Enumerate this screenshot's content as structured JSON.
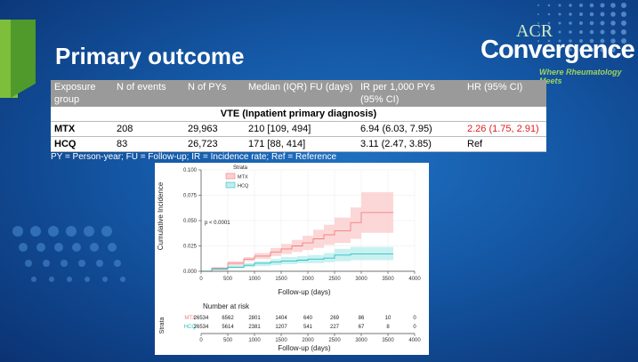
{
  "title": "Primary outcome",
  "logo": {
    "acr": "ACR",
    "name": "Convergence",
    "tagline": "Where Rheumatology Meets"
  },
  "table": {
    "headers": [
      "Exposure group",
      "N of events",
      "N of PYs",
      "Median (IQR) FU (days)",
      "IR per 1,000 PYs (95% CI)",
      "HR (95% CI)"
    ],
    "section": "VTE (Inpatient primary diagnosis)",
    "rows": [
      {
        "group": "MTX",
        "events": "208",
        "pys": "29,963",
        "median": "210 [109, 494]",
        "ir": "6.94 (6.03, 7.95)",
        "hr": "2.26 (1.75, 2.91)"
      },
      {
        "group": "HCQ",
        "events": "83",
        "pys": "26,723",
        "median": "171 [88, 414]",
        "ir": "3.11 (2.47, 3.85)",
        "hr": "Ref"
      }
    ]
  },
  "footnote": "PY = Person-year; FU = Follow-up; IR = Incidence rate; Ref = Reference",
  "colors": {
    "mtx": "#f08080",
    "hcq": "#2bbfbf",
    "hr_highlight": "#e02020"
  },
  "chart_data": {
    "type": "line",
    "ylabel": "Cumulative Incidence",
    "xlabel": "Follow-up (days)",
    "legend_title": "Strata",
    "pvalue": "p < 0.0001",
    "xlim": [
      0,
      4000
    ],
    "ylim": [
      0,
      0.1
    ],
    "x_ticks": [
      "0",
      "500",
      "1000",
      "1500",
      "2000",
      "2500",
      "3000",
      "3500",
      "4000"
    ],
    "y_ticks": [
      "0.000",
      "0.025",
      "0.050",
      "0.075",
      "0.100"
    ],
    "series": [
      {
        "name": "MTX",
        "x": [
          0,
          200,
          500,
          800,
          1000,
          1300,
          1500,
          1700,
          1900,
          2100,
          2300,
          2500,
          2800,
          3000,
          3200,
          3600
        ],
        "y": [
          0,
          0.003,
          0.008,
          0.012,
          0.015,
          0.019,
          0.022,
          0.025,
          0.028,
          0.032,
          0.036,
          0.04,
          0.048,
          0.058,
          0.058,
          0.058
        ],
        "lower": [
          0,
          0.002,
          0.006,
          0.01,
          0.012,
          0.015,
          0.017,
          0.019,
          0.021,
          0.023,
          0.026,
          0.028,
          0.032,
          0.038,
          0.038,
          0.038
        ],
        "upper": [
          0,
          0.004,
          0.01,
          0.014,
          0.018,
          0.023,
          0.027,
          0.031,
          0.035,
          0.041,
          0.046,
          0.053,
          0.063,
          0.078,
          0.078,
          0.078
        ]
      },
      {
        "name": "HCQ",
        "x": [
          0,
          200,
          500,
          800,
          1000,
          1300,
          1500,
          1800,
          2000,
          2300,
          2500,
          2800,
          3600
        ],
        "y": [
          0,
          0.002,
          0.004,
          0.006,
          0.008,
          0.009,
          0.01,
          0.011,
          0.012,
          0.013,
          0.016,
          0.017,
          0.017
        ],
        "lower": [
          0,
          0.001,
          0.003,
          0.004,
          0.005,
          0.006,
          0.007,
          0.008,
          0.008,
          0.009,
          0.01,
          0.011,
          0.011
        ],
        "upper": [
          0,
          0.003,
          0.006,
          0.008,
          0.01,
          0.012,
          0.014,
          0.015,
          0.016,
          0.018,
          0.022,
          0.024,
          0.024
        ]
      }
    ],
    "risk_table": {
      "title": "Number at risk",
      "ylabel": "Strata",
      "rows": [
        {
          "name": "MTX",
          "values": [
            "26534",
            "6562",
            "2801",
            "1404",
            "640",
            "269",
            "86",
            "10",
            "0"
          ]
        },
        {
          "name": "HCQ",
          "values": [
            "26534",
            "5614",
            "2381",
            "1207",
            "541",
            "227",
            "67",
            "8",
            "0"
          ]
        }
      ]
    }
  }
}
